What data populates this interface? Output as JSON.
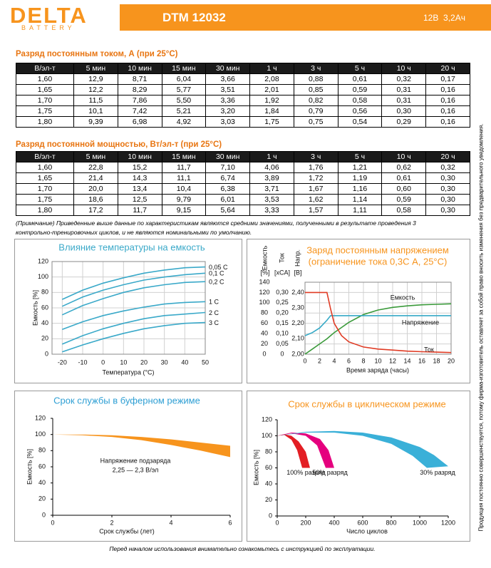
{
  "header": {
    "brand": "DELTA",
    "brand_sub": "BATTERY",
    "model": "DTM 12032",
    "spec": "12В  3,2Ач"
  },
  "tables": [
    {
      "title": "Разряд постоянным током, А (при 25°С)",
      "columns": [
        "В/эл-т",
        "5 мин",
        "10 мин",
        "15 мин",
        "30 мин",
        "1 ч",
        "3 ч",
        "5 ч",
        "10 ч",
        "20 ч"
      ],
      "rows": [
        [
          "1,60",
          "12,9",
          "8,71",
          "6,04",
          "3,66",
          "2,08",
          "0,88",
          "0,61",
          "0,32",
          "0,17"
        ],
        [
          "1,65",
          "12,2",
          "8,29",
          "5,77",
          "3,51",
          "2,01",
          "0,85",
          "0,59",
          "0,31",
          "0,16"
        ],
        [
          "1,70",
          "11,5",
          "7,86",
          "5,50",
          "3,36",
          "1,92",
          "0,82",
          "0,58",
          "0,31",
          "0,16"
        ],
        [
          "1,75",
          "10,1",
          "7,42",
          "5,21",
          "3,20",
          "1,84",
          "0,79",
          "0,56",
          "0,30",
          "0,16"
        ],
        [
          "1,80",
          "9,39",
          "6,98",
          "4,92",
          "3,03",
          "1,75",
          "0,75",
          "0,54",
          "0,29",
          "0,16"
        ]
      ]
    },
    {
      "title": "Разряд постоянной мощностью, Вт/эл-т (при 25°С)",
      "columns": [
        "В/эл-т",
        "5 мин",
        "10 мин",
        "15 мин",
        "30 мин",
        "1 ч",
        "3 ч",
        "5 ч",
        "10 ч",
        "20 ч"
      ],
      "rows": [
        [
          "1,60",
          "22,8",
          "15,2",
          "11,7",
          "7,10",
          "4,06",
          "1,76",
          "1,21",
          "0,62",
          "0,32"
        ],
        [
          "1,65",
          "21,4",
          "14,3",
          "11,1",
          "6,74",
          "3,89",
          "1,72",
          "1,19",
          "0,61",
          "0,30"
        ],
        [
          "1,70",
          "20,0",
          "13,4",
          "10,4",
          "6,38",
          "3,71",
          "1,67",
          "1,16",
          "0,60",
          "0,30"
        ],
        [
          "1,75",
          "18,6",
          "12,5",
          "9,79",
          "6,01",
          "3,53",
          "1,62",
          "1,14",
          "0,59",
          "0,30"
        ],
        [
          "1,80",
          "17,2",
          "11,7",
          "9,15",
          "5,64",
          "3,33",
          "1,57",
          "1,11",
          "0,58",
          "0,30"
        ]
      ]
    }
  ],
  "note": "(Примечание) Приведенные выше данные по характеристикам являются средними значениями, полученными в результате проведения 3 контрольно-тренировочных циклов, и не являются номинальными по умолчанию.",
  "side_note": "Продукция постоянно совершенствуется, потому фирма-изготовитель оставляет за собой право вносить изменения без предварительного уведомления.",
  "chart_data": [
    {
      "type": "line",
      "title": "Влияние температуры на емкость",
      "title_color": "#3aa9c9",
      "xlabel": "Температура (°С)",
      "ylabel": "Емкость [%]",
      "x": [
        -20,
        -10,
        0,
        10,
        20,
        30,
        40,
        50
      ],
      "xlim": [
        -25,
        50
      ],
      "xticks": [
        -20,
        -10,
        0,
        10,
        20,
        30,
        40,
        50
      ],
      "ylim": [
        0,
        120
      ],
      "yticks": [
        0,
        20,
        40,
        60,
        80,
        100,
        120
      ],
      "grid": true,
      "series": [
        {
          "name": "0,05 C",
          "color": "#3aa9c9",
          "values": [
            71,
            83,
            92,
            99,
            105,
            109,
            112,
            113
          ]
        },
        {
          "name": "0,1 C",
          "color": "#3aa9c9",
          "values": [
            62,
            74,
            83,
            90,
            96,
            100,
            103,
            105
          ]
        },
        {
          "name": "0,2 C",
          "color": "#3aa9c9",
          "values": [
            51,
            63,
            72,
            80,
            86,
            90,
            93,
            94
          ]
        },
        {
          "name": "1 C",
          "color": "#3aa9c9",
          "values": [
            32,
            42,
            50,
            56,
            61,
            65,
            67,
            68
          ]
        },
        {
          "name": "2 C",
          "color": "#3aa9c9",
          "values": [
            13,
            24,
            33,
            40,
            46,
            50,
            52,
            54
          ]
        },
        {
          "name": "3 C",
          "color": "#3aa9c9",
          "values": [
            3,
            12,
            20,
            27,
            33,
            37,
            40,
            41
          ]
        }
      ]
    },
    {
      "type": "line",
      "title": "Заряд постоянным напряжением",
      "subtitle": "(ограничение тока 0,3С А, 25°С)",
      "title_color": "#f7941d",
      "xlabel": "Время заряда (часы)",
      "ylabel": "Емкость",
      "yunit": "[%]",
      "y2label": "Ток",
      "y2unit": "[xCA]",
      "y3label": "Напр.",
      "y3unit": "[В]",
      "x": [
        0,
        1,
        2,
        3,
        3.5,
        4,
        5,
        6,
        8,
        10,
        12,
        14,
        16,
        18,
        20
      ],
      "xlim": [
        0,
        20
      ],
      "xticks": [
        0,
        2,
        4,
        6,
        8,
        10,
        12,
        14,
        16,
        18,
        20
      ],
      "ylim": [
        0,
        140
      ],
      "yticks": [
        0,
        20,
        40,
        60,
        80,
        100,
        120,
        140
      ],
      "y2lim": [
        0,
        0.35
      ],
      "y2ticks": [
        0,
        {
          "value": 0.05,
          "label": "0,05"
        },
        {
          "value": 0.1,
          "label": "0,10"
        },
        {
          "value": 0.15,
          "label": "0,15"
        },
        {
          "value": 0.2,
          "label": "0,20"
        },
        {
          "value": 0.25,
          "label": "0,25"
        },
        {
          "value": 0.3,
          "label": "0,30"
        }
      ],
      "y3lim": [
        2.0,
        2.4667
      ],
      "y3ticks": [
        {
          "value": 2.0,
          "label": "2,00"
        },
        {
          "value": 2.1,
          "label": "2,10"
        },
        {
          "value": 2.2,
          "label": "2,20"
        },
        {
          "value": 2.3,
          "label": "2,30"
        },
        {
          "value": 2.4,
          "label": "2,40"
        }
      ],
      "grid": true,
      "series": [
        {
          "name": "Емкость",
          "color": "#3a9a3a",
          "values": [
            0,
            10,
            20,
            30,
            36,
            42,
            52,
            62,
            77,
            86,
            91,
            94,
            96,
            97,
            98
          ]
        },
        {
          "name": "Напряжение",
          "color": "#35a9c6",
          "axis": "y3",
          "values": [
            2.12,
            2.14,
            2.17,
            2.22,
            2.25,
            2.25,
            2.25,
            2.25,
            2.25,
            2.25,
            2.25,
            2.25,
            2.25,
            2.25,
            2.25
          ]
        },
        {
          "name": "Ток",
          "color": "#e03b24",
          "axis": "y2",
          "values": [
            0.3,
            0.3,
            0.3,
            0.3,
            0.22,
            0.15,
            0.09,
            0.06,
            0.035,
            0.025,
            0.02,
            0.015,
            0.012,
            0.01,
            0.008
          ]
        }
      ]
    },
    {
      "type": "band",
      "title": "Срок службы в буферном режиме",
      "title_color": "#2e9fd4",
      "xlabel": "Срок службы (лет)",
      "ylabel": "Емкость [%]",
      "xlim": [
        0,
        6
      ],
      "xticks": [
        0,
        2,
        4,
        6
      ],
      "ylim": [
        0,
        120
      ],
      "yticks": [
        0,
        20,
        40,
        60,
        80,
        100,
        120
      ],
      "grid": false,
      "annotation": [
        "Напряжение подзаряда",
        "2,25 — 2,3 В/эл"
      ],
      "series": [
        {
          "color": "#f7941d",
          "upper": {
            "x": [
              0,
              1,
              2,
              3,
              4,
              5,
              6
            ],
            "y": [
              100,
              100,
              99,
              97,
              94,
              90,
              86
            ]
          },
          "lower": {
            "x": [
              0,
              1,
              2,
              3,
              4,
              5,
              6
            ],
            "y": [
              100,
              99,
              97,
              93,
              87,
              80,
              72
            ]
          }
        }
      ]
    },
    {
      "type": "band",
      "title": "Срок службы в циклическом режиме",
      "title_color": "#f7941d",
      "xlabel": "Число циклов",
      "ylabel": "Емкость [%]",
      "xlim": [
        0,
        1200
      ],
      "xticks": [
        0,
        200,
        400,
        600,
        800,
        1000,
        1200
      ],
      "ylim": [
        0,
        120
      ],
      "yticks": [
        0,
        20,
        40,
        60,
        80,
        100,
        120
      ],
      "grid": false,
      "series": [
        {
          "name": "100% разряд",
          "color": "#e31e24",
          "upper": {
            "x": [
              0,
              50,
              100,
              150,
              200,
              230
            ],
            "y": [
              100,
              102,
              100,
              93,
              80,
              60
            ]
          },
          "lower": {
            "x": [
              0,
              50,
              100,
              140,
              175
            ],
            "y": [
              100,
              101,
              95,
              82,
              60
            ]
          }
        },
        {
          "name": "50% разряд",
          "color": "#e5007e",
          "upper": {
            "x": [
              0,
              100,
              200,
              300,
              360,
              400
            ],
            "y": [
              100,
              104,
              103,
              96,
              82,
              60
            ]
          },
          "lower": {
            "x": [
              0,
              100,
              200,
              280,
              340
            ],
            "y": [
              100,
              103,
              100,
              88,
              60
            ]
          }
        },
        {
          "name": "30% разряд",
          "color": "#3ab0d8",
          "upper": {
            "x": [
              0,
              200,
              400,
              600,
              800,
              1000,
              1100,
              1200
            ],
            "y": [
              100,
              105,
              106,
              104,
              98,
              86,
              76,
              62
            ]
          },
          "lower": {
            "x": [
              0,
              200,
              400,
              600,
              800,
              950,
              1050
            ],
            "y": [
              100,
              104,
              104,
              100,
              90,
              75,
              60
            ]
          }
        }
      ]
    }
  ],
  "footer": "Перед началом использования внимательно ознакомьтесь с инструкцией по эксплуатации."
}
